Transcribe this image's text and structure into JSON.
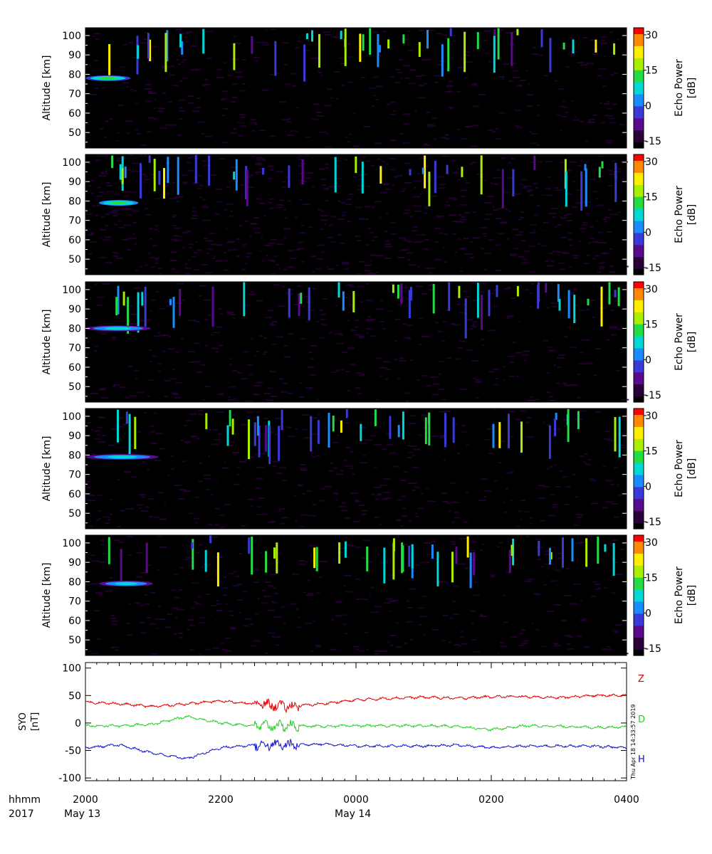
{
  "colors": {
    "background": "#ffffff",
    "panel_background": "#000000",
    "Z": "#dd0000",
    "D": "#22cc22",
    "H": "#1111cc"
  },
  "colorbar": {
    "label_line1": "Echo Power",
    "label_line2": "[dB]",
    "ticks": [
      "30",
      "15",
      "0",
      "-15"
    ],
    "range": [
      -18,
      33
    ],
    "colormap": [
      "#000000",
      "#2a0038",
      "#5a0a8c",
      "#3a3ad8",
      "#1a8cff",
      "#00d8d8",
      "#22dd44",
      "#aaee00",
      "#ffee00",
      "#ff8800",
      "#ff0000"
    ]
  },
  "radar_panels": {
    "ylabel": "Altitude [km]",
    "yticks": [
      "100",
      "90",
      "80",
      "70",
      "60",
      "50"
    ],
    "yrange": [
      42,
      104
    ]
  },
  "chart_data": [
    {
      "type": "heatmap",
      "panel": 1,
      "ylabel": "Altitude [km]",
      "ylim": [
        42,
        104
      ],
      "colorbar_label": "Echo Power [dB]",
      "zlim": [
        -18,
        33
      ],
      "features": [
        {
          "kind": "echo_layer",
          "start": "2000",
          "end": "2040",
          "altitude_km": 78,
          "power_db": 10
        }
      ]
    },
    {
      "type": "heatmap",
      "panel": 2,
      "ylabel": "Altitude [km]",
      "ylim": [
        42,
        104
      ],
      "colorbar_label": "Echo Power [dB]",
      "zlim": [
        -18,
        33
      ],
      "features": [
        {
          "kind": "echo_layer",
          "start": "2012",
          "end": "2047",
          "altitude_km": 79,
          "power_db": 12
        }
      ]
    },
    {
      "type": "heatmap",
      "panel": 3,
      "ylabel": "Altitude [km]",
      "ylim": [
        42,
        104
      ],
      "colorbar_label": "Echo Power [dB]",
      "zlim": [
        -18,
        33
      ],
      "features": [
        {
          "kind": "echo_layer",
          "start": "2000",
          "end": "2058",
          "altitude_km": 80,
          "power_db": 4
        }
      ]
    },
    {
      "type": "heatmap",
      "panel": 4,
      "ylabel": "Altitude [km]",
      "ylim": [
        42,
        104
      ],
      "colorbar_label": "Echo Power [dB]",
      "zlim": [
        -18,
        33
      ],
      "features": [
        {
          "kind": "echo_layer",
          "start": "2000",
          "end": "2105",
          "altitude_km": 79,
          "power_db": 5
        }
      ]
    },
    {
      "type": "heatmap",
      "panel": 5,
      "ylabel": "Altitude [km]",
      "ylim": [
        42,
        104
      ],
      "colorbar_label": "Echo Power [dB]",
      "zlim": [
        -18,
        33
      ],
      "features": [
        {
          "kind": "echo_layer",
          "start": "2012",
          "end": "2100",
          "altitude_km": 79,
          "power_db": 6
        }
      ]
    },
    {
      "type": "line",
      "ylabel": "SYO\n[nT]",
      "ylim": [
        -105,
        110
      ],
      "yticks": [
        "100",
        "50",
        "0",
        "-50",
        "-100"
      ],
      "x": [
        "2000",
        "2030",
        "2100",
        "2130",
        "2200",
        "2230",
        "2300",
        "2330",
        "0000",
        "0030",
        "0100",
        "0130",
        "0200",
        "0230",
        "0300",
        "0330",
        "0400"
      ],
      "series": [
        {
          "name": "Z",
          "values": [
            38,
            35,
            30,
            35,
            40,
            35,
            30,
            35,
            42,
            45,
            47,
            45,
            48,
            48,
            46,
            50,
            50
          ]
        },
        {
          "name": "D",
          "values": [
            -5,
            -5,
            -2,
            12,
            0,
            -5,
            -5,
            -6,
            -5,
            -5,
            -5,
            -6,
            -12,
            -5,
            -6,
            -8,
            -7
          ]
        },
        {
          "name": "H",
          "values": [
            -45,
            -40,
            -55,
            -65,
            -45,
            -40,
            -40,
            -38,
            -42,
            -42,
            -42,
            -40,
            -45,
            -42,
            -42,
            -42,
            -45
          ]
        }
      ]
    }
  ],
  "x_axis": {
    "row1_label": "hhmm",
    "row2_label": "2017",
    "ticks": [
      "2000",
      "2200",
      "0000",
      "0200",
      "0400"
    ],
    "dates": [
      "May 13",
      "May 14"
    ]
  },
  "timestamp": "Thu Apr 18 14:33:57 2019"
}
